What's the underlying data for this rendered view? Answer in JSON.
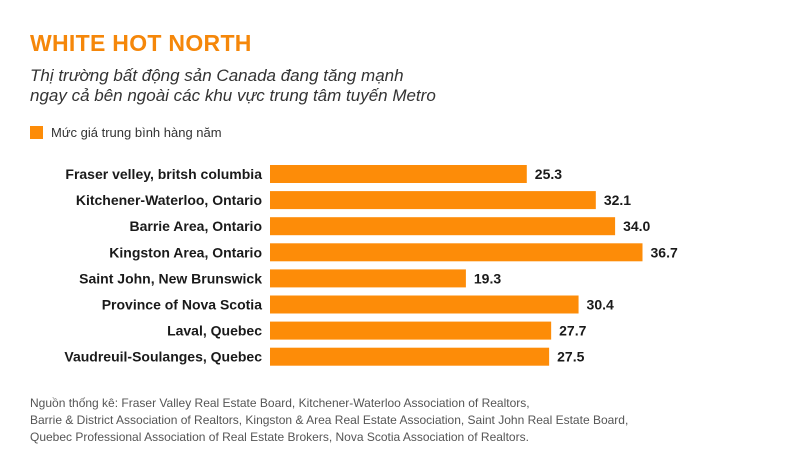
{
  "header": {
    "title": "WHITE HOT NORTH",
    "subtitle_line1": "Thị trường bất động sản Canada đang tăng mạnh",
    "subtitle_line2": "ngay cả bên ngoài các khu vực trung tâm tuyến Metro"
  },
  "legend": {
    "label": "Mức giá trung bình hàng năm"
  },
  "colors": {
    "accent": "#fd8c08",
    "title": "#f5870a",
    "text": "#1a1a1a"
  },
  "chart_data": {
    "type": "bar",
    "orientation": "horizontal",
    "categories": [
      "Fraser velley, britsh columbia",
      "Kitchener-Waterloo, Ontario",
      "Barrie Area, Ontario",
      "Kingston Area, Ontario",
      "Saint John, New Brunswick",
      "Province of Nova Scotia",
      "Laval, Quebec",
      "Vaudreuil-Soulanges, Quebec"
    ],
    "value_labels": [
      "25.3",
      "32.1",
      "34.0",
      "36.7",
      "19.3",
      "30.4",
      "27.7",
      "27.5"
    ],
    "series": [
      {
        "name": "Mức giá trung bình hàng năm",
        "values": [
          25.3,
          32.1,
          34.0,
          36.7,
          19.3,
          30.4,
          27.7,
          27.5
        ]
      }
    ],
    "xlim": [
      0,
      40
    ],
    "grid": false,
    "legend_position": "top-left"
  },
  "source": {
    "line1": "Nguồn thống kê: Fraser Valley Real Estate Board, Kitchener-Waterloo Association of Realtors,",
    "line2": "Barrie & District Association of Realtors, Kingston & Area Real Estate Association, Saint John Real Estate Board,",
    "line3": "Quebec Professional Association of Real Estate Brokers, Nova Scotia Association of Realtors."
  }
}
